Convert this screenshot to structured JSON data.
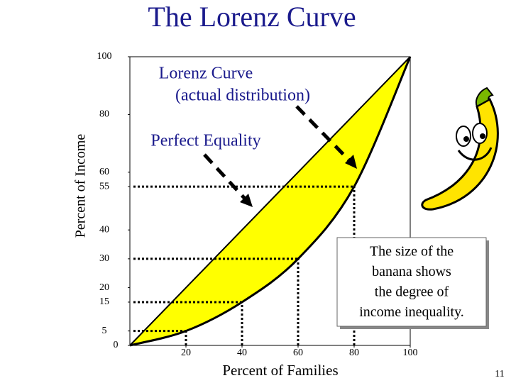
{
  "chart_data": {
    "type": "line",
    "title": "The Lorenz Curve",
    "xlabel": "Percent of Families",
    "ylabel": "Percent of Income",
    "x": [
      0,
      20,
      40,
      60,
      80,
      100
    ],
    "xlim": [
      0,
      100
    ],
    "xticks": [
      20,
      40,
      60,
      80,
      100
    ],
    "ylim": [
      0,
      100
    ],
    "yticks": [
      0,
      5,
      15,
      20,
      30,
      40,
      55,
      60,
      80,
      100
    ],
    "fill_color": "#ffff00",
    "series": [
      {
        "name": "Perfect Equality",
        "color": "#000000",
        "values": [
          0,
          20,
          40,
          60,
          80,
          100
        ]
      },
      {
        "name": "Lorenz Curve",
        "color": "#000000",
        "values": [
          0,
          5,
          15,
          30,
          55,
          100
        ]
      }
    ],
    "annotations": {
      "lorenz_note": "(actual distribution)",
      "banana_note": [
        "The size of the",
        "banana shows",
        "the degree of",
        "income inequality."
      ]
    },
    "page_number": "11"
  }
}
